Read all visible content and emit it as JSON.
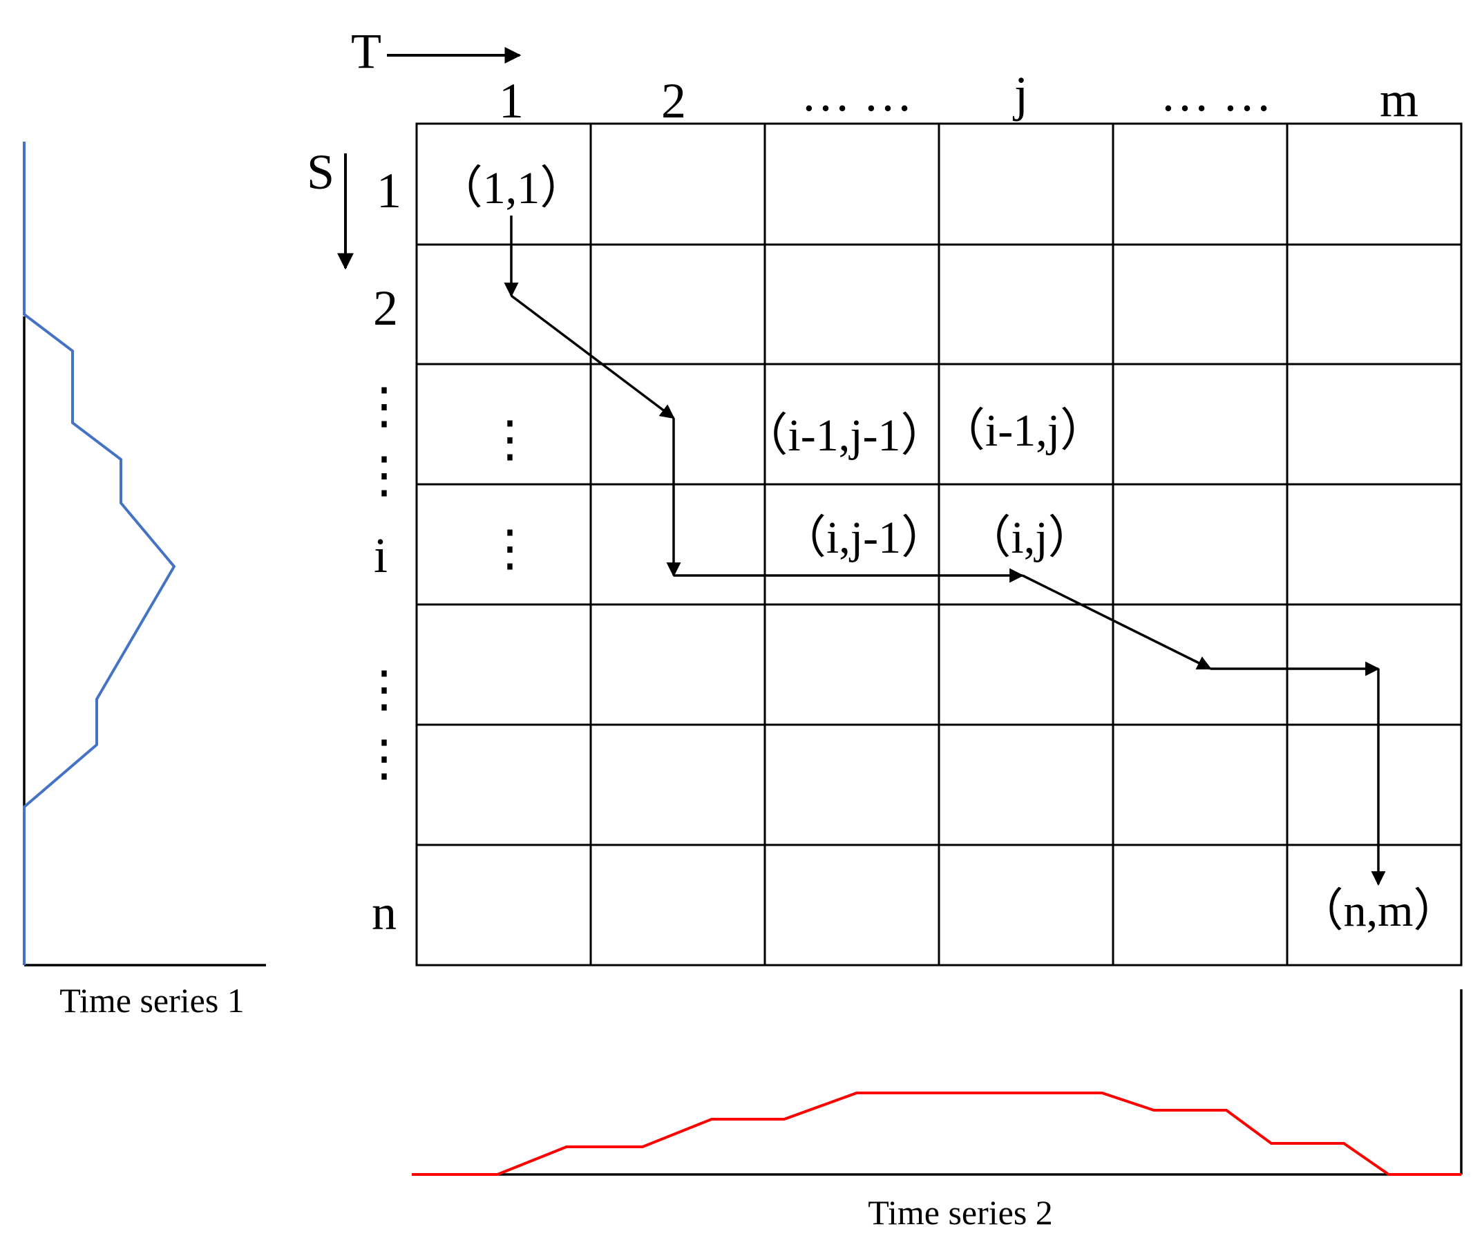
{
  "axes": {
    "t_label": "T",
    "s_label": "S"
  },
  "column_labels": [
    "1",
    "2",
    "…  …",
    "j",
    "…  …",
    "m"
  ],
  "row_labels": [
    "1",
    "2",
    "⋮",
    "⋮",
    "i",
    "⋮",
    "⋮",
    "n"
  ],
  "cells": {
    "start": "（1,1）",
    "diag_prev": "（i-1,j-1）",
    "up_prev": "（i-1,j）",
    "left_prev": "（i,j-1）",
    "current": "（i,j）",
    "end": "（n,m）",
    "col1_dots_a": "⋮",
    "col1_dots_b": "⋮"
  },
  "captions": {
    "series1": "Time series 1",
    "series2": "Time series 2"
  },
  "colors": {
    "series1": "#4472C4",
    "series2": "#FF0000",
    "grid": "#000000"
  }
}
